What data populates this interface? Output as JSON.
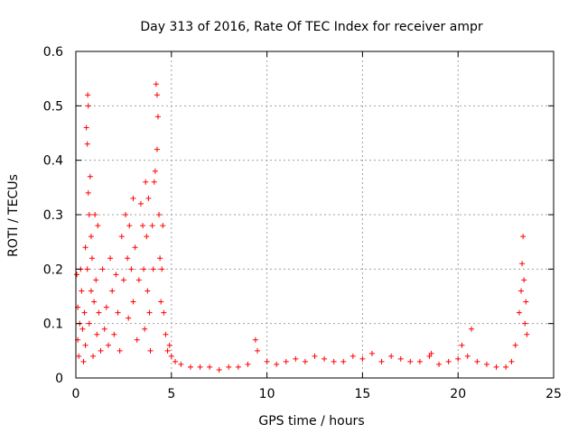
{
  "chart_data": {
    "type": "scatter",
    "title": "Day 313 of 2016, Rate Of TEC Index for receiver ampr",
    "xlabel": "GPS time / hours",
    "ylabel": "ROTI / TECUs",
    "xlim": [
      0,
      25
    ],
    "ylim": [
      0,
      0.6
    ],
    "xticks": [
      0,
      5,
      10,
      15,
      20,
      25
    ],
    "yticks": [
      0,
      0.1,
      0.2,
      0.3,
      0.4,
      0.5,
      0.6
    ],
    "xtick_labels": [
      "0",
      "5",
      "10",
      "15",
      "20",
      "25"
    ],
    "ytick_labels": [
      "0",
      "0.1",
      "0.2",
      "0.3",
      "0.4",
      "0.5",
      "0.6"
    ],
    "grid": true,
    "marker": "+",
    "color": "#ff0000",
    "series": [
      {
        "name": "ROTI",
        "points": [
          [
            0.05,
            0.19
          ],
          [
            0.1,
            0.13
          ],
          [
            0.1,
            0.07
          ],
          [
            0.15,
            0.04
          ],
          [
            0.2,
            0.1
          ],
          [
            0.25,
            0.2
          ],
          [
            0.3,
            0.16
          ],
          [
            0.35,
            0.09
          ],
          [
            0.4,
            0.03
          ],
          [
            0.45,
            0.12
          ],
          [
            0.5,
            0.24
          ],
          [
            0.5,
            0.06
          ],
          [
            0.55,
            0.46
          ],
          [
            0.6,
            0.43
          ],
          [
            0.6,
            0.2
          ],
          [
            0.62,
            0.52
          ],
          [
            0.65,
            0.5
          ],
          [
            0.65,
            0.34
          ],
          [
            0.7,
            0.3
          ],
          [
            0.7,
            0.1
          ],
          [
            0.75,
            0.37
          ],
          [
            0.8,
            0.26
          ],
          [
            0.8,
            0.16
          ],
          [
            0.85,
            0.22
          ],
          [
            0.9,
            0.04
          ],
          [
            0.95,
            0.14
          ],
          [
            1.0,
            0.3
          ],
          [
            1.05,
            0.18
          ],
          [
            1.1,
            0.08
          ],
          [
            1.15,
            0.28
          ],
          [
            1.2,
            0.12
          ],
          [
            1.3,
            0.05
          ],
          [
            1.4,
            0.2
          ],
          [
            1.5,
            0.09
          ],
          [
            1.6,
            0.13
          ],
          [
            1.7,
            0.06
          ],
          [
            1.8,
            0.22
          ],
          [
            1.9,
            0.16
          ],
          [
            2.0,
            0.08
          ],
          [
            2.1,
            0.19
          ],
          [
            2.2,
            0.12
          ],
          [
            2.3,
            0.05
          ],
          [
            2.4,
            0.26
          ],
          [
            2.5,
            0.18
          ],
          [
            2.6,
            0.3
          ],
          [
            2.7,
            0.22
          ],
          [
            2.75,
            0.11
          ],
          [
            2.8,
            0.28
          ],
          [
            2.9,
            0.2
          ],
          [
            3.0,
            0.33
          ],
          [
            3.0,
            0.14
          ],
          [
            3.1,
            0.24
          ],
          [
            3.2,
            0.07
          ],
          [
            3.3,
            0.18
          ],
          [
            3.4,
            0.32
          ],
          [
            3.5,
            0.28
          ],
          [
            3.55,
            0.2
          ],
          [
            3.6,
            0.09
          ],
          [
            3.65,
            0.36
          ],
          [
            3.7,
            0.26
          ],
          [
            3.75,
            0.16
          ],
          [
            3.8,
            0.33
          ],
          [
            3.85,
            0.12
          ],
          [
            3.9,
            0.05
          ],
          [
            4.0,
            0.28
          ],
          [
            4.05,
            0.2
          ],
          [
            4.1,
            0.36
          ],
          [
            4.15,
            0.38
          ],
          [
            4.2,
            0.54
          ],
          [
            4.25,
            0.52
          ],
          [
            4.25,
            0.42
          ],
          [
            4.3,
            0.48
          ],
          [
            4.35,
            0.3
          ],
          [
            4.4,
            0.22
          ],
          [
            4.45,
            0.14
          ],
          [
            4.5,
            0.2
          ],
          [
            4.55,
            0.28
          ],
          [
            4.6,
            0.12
          ],
          [
            4.7,
            0.08
          ],
          [
            4.8,
            0.05
          ],
          [
            4.9,
            0.06
          ],
          [
            5.0,
            0.04
          ],
          [
            5.2,
            0.03
          ],
          [
            5.5,
            0.025
          ],
          [
            6.0,
            0.02
          ],
          [
            6.5,
            0.02
          ],
          [
            7.0,
            0.02
          ],
          [
            7.5,
            0.015
          ],
          [
            8.0,
            0.02
          ],
          [
            8.5,
            0.02
          ],
          [
            9.0,
            0.025
          ],
          [
            9.4,
            0.07
          ],
          [
            9.5,
            0.05
          ],
          [
            10.0,
            0.03
          ],
          [
            10.5,
            0.025
          ],
          [
            11.0,
            0.03
          ],
          [
            11.5,
            0.035
          ],
          [
            12.0,
            0.03
          ],
          [
            12.5,
            0.04
          ],
          [
            13.0,
            0.035
          ],
          [
            13.5,
            0.03
          ],
          [
            14.0,
            0.03
          ],
          [
            14.5,
            0.04
          ],
          [
            15.0,
            0.035
          ],
          [
            15.5,
            0.045
          ],
          [
            16.0,
            0.03
          ],
          [
            16.5,
            0.04
          ],
          [
            17.0,
            0.035
          ],
          [
            17.5,
            0.03
          ],
          [
            18.0,
            0.03
          ],
          [
            18.5,
            0.04
          ],
          [
            18.6,
            0.045
          ],
          [
            19.0,
            0.025
          ],
          [
            19.5,
            0.03
          ],
          [
            20.0,
            0.035
          ],
          [
            20.2,
            0.06
          ],
          [
            20.5,
            0.04
          ],
          [
            20.7,
            0.09
          ],
          [
            21.0,
            0.03
          ],
          [
            21.5,
            0.025
          ],
          [
            22.0,
            0.02
          ],
          [
            22.5,
            0.02
          ],
          [
            22.8,
            0.03
          ],
          [
            23.0,
            0.06
          ],
          [
            23.2,
            0.12
          ],
          [
            23.3,
            0.16
          ],
          [
            23.35,
            0.21
          ],
          [
            23.4,
            0.26
          ],
          [
            23.45,
            0.18
          ],
          [
            23.5,
            0.1
          ],
          [
            23.55,
            0.14
          ],
          [
            23.6,
            0.08
          ]
        ]
      }
    ]
  }
}
